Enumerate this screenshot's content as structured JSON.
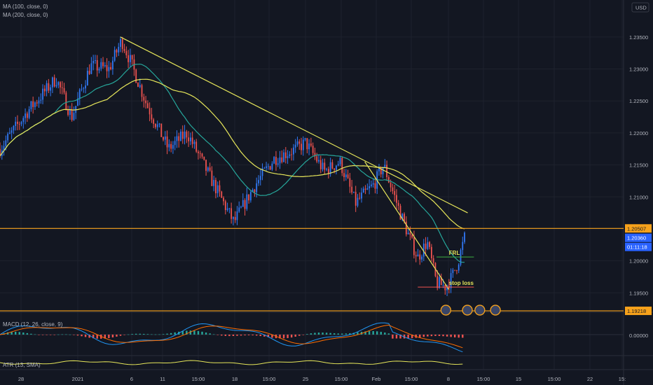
{
  "colors": {
    "bg": "#131722",
    "grid": "#1e222d",
    "up": "#3179f5",
    "down": "#ef5350",
    "ma100": "#26a69a",
    "ma200": "#e6e65a",
    "trend": "#e6e65a",
    "level": "#f7a21b",
    "frl": "#3cb043",
    "stoploss": "#ef5350",
    "macd": "#2196f3",
    "signal": "#ff6d00",
    "atr": "#e6e65a",
    "axis_text": "#b2b5be"
  },
  "header": {
    "currency": "USD",
    "indicator_1": "MA (100, close, 0)",
    "indicator_2": "MA (200, close, 0)"
  },
  "chart_data": {
    "type": "candlestick",
    "y_ticks": [
      "1.23500",
      "1.23000",
      "1.22500",
      "1.22000",
      "1.21500",
      "1.21000",
      "1.20500",
      "1.20000",
      "1.19500"
    ],
    "ylim": [
      1.1935,
      1.2375
    ],
    "x_ticks": [
      "28",
      "2021",
      "6",
      "11",
      "15:00",
      "18",
      "15:00",
      "25",
      "15:00",
      "Feb",
      "15:00",
      "8",
      "15:00",
      "15",
      "15:00",
      "22",
      "15:"
    ],
    "price_path": [
      {
        "t": 0,
        "p": 1.2175
      },
      {
        "t": 0.045,
        "p": 1.2235
      },
      {
        "t": 0.09,
        "p": 1.2285
      },
      {
        "t": 0.115,
        "p": 1.2225
      },
      {
        "t": 0.145,
        "p": 1.2305
      },
      {
        "t": 0.175,
        "p": 1.23
      },
      {
        "t": 0.195,
        "p": 1.2345
      },
      {
        "t": 0.21,
        "p": 1.231
      },
      {
        "t": 0.235,
        "p": 1.2245
      },
      {
        "t": 0.27,
        "p": 1.2175
      },
      {
        "t": 0.3,
        "p": 1.22
      },
      {
        "t": 0.34,
        "p": 1.2125
      },
      {
        "t": 0.375,
        "p": 1.206
      },
      {
        "t": 0.41,
        "p": 1.212
      },
      {
        "t": 0.44,
        "p": 1.216
      },
      {
        "t": 0.475,
        "p": 1.2175
      },
      {
        "t": 0.49,
        "p": 1.2185
      },
      {
        "t": 0.52,
        "p": 1.214
      },
      {
        "t": 0.545,
        "p": 1.2155
      },
      {
        "t": 0.57,
        "p": 1.209
      },
      {
        "t": 0.6,
        "p": 1.212
      },
      {
        "t": 0.615,
        "p": 1.215
      },
      {
        "t": 0.64,
        "p": 1.208
      },
      {
        "t": 0.655,
        "p": 1.204
      },
      {
        "t": 0.67,
        "p": 1.2005
      },
      {
        "t": 0.685,
        "p": 1.203
      },
      {
        "t": 0.7,
        "p": 1.1965
      },
      {
        "t": 0.715,
        "p": 1.196
      },
      {
        "t": 0.725,
        "p": 1.1975
      },
      {
        "t": 0.735,
        "p": 1.2
      },
      {
        "t": 0.745,
        "p": 1.2036
      }
    ],
    "price_labels": [
      {
        "text": "1.20507",
        "price": 1.20507,
        "kind": "level"
      },
      {
        "text": "1.20360",
        "price": 1.2036,
        "kind": "last"
      },
      {
        "text": "01:11:18",
        "price": 1.2036,
        "kind": "countdown"
      },
      {
        "text": "1.19218",
        "price": 1.19218,
        "kind": "level"
      }
    ],
    "annotations": [
      {
        "text": "FRL",
        "price": 1.2006,
        "color": "#e6e65a"
      },
      {
        "text": "stop loss",
        "price": 1.1959,
        "color": "#e6e65a"
      }
    ],
    "macd_label": "MACD (12, 26, close, 9)",
    "macd_value": "0.00000",
    "atr_label": "ATR (13, SMA)"
  }
}
